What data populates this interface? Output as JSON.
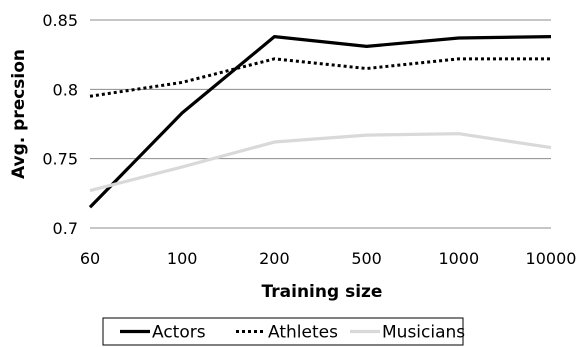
{
  "chart_data": {
    "type": "line",
    "title": "",
    "xlabel": "Training size",
    "ylabel": "Avg. precsion",
    "categories": [
      "60",
      "100",
      "200",
      "500",
      "1000",
      "10000"
    ],
    "ylim": [
      0.7,
      0.85
    ],
    "yticks": [
      "0.7",
      "0.75",
      "0.8",
      "0.85"
    ],
    "grid": "horizontal",
    "legend_position": "bottom",
    "series": [
      {
        "name": "Actors",
        "values": [
          0.715,
          0.783,
          0.838,
          0.831,
          0.837,
          0.838
        ],
        "color": "#000000",
        "style": "solid"
      },
      {
        "name": "Athletes",
        "values": [
          0.795,
          0.805,
          0.822,
          0.815,
          0.822,
          0.822
        ],
        "color": "#000000",
        "style": "dotted"
      },
      {
        "name": "Musicians",
        "values": [
          0.727,
          0.744,
          0.762,
          0.767,
          0.768,
          0.758
        ],
        "color": "#d9d9d9",
        "style": "solid"
      }
    ]
  }
}
